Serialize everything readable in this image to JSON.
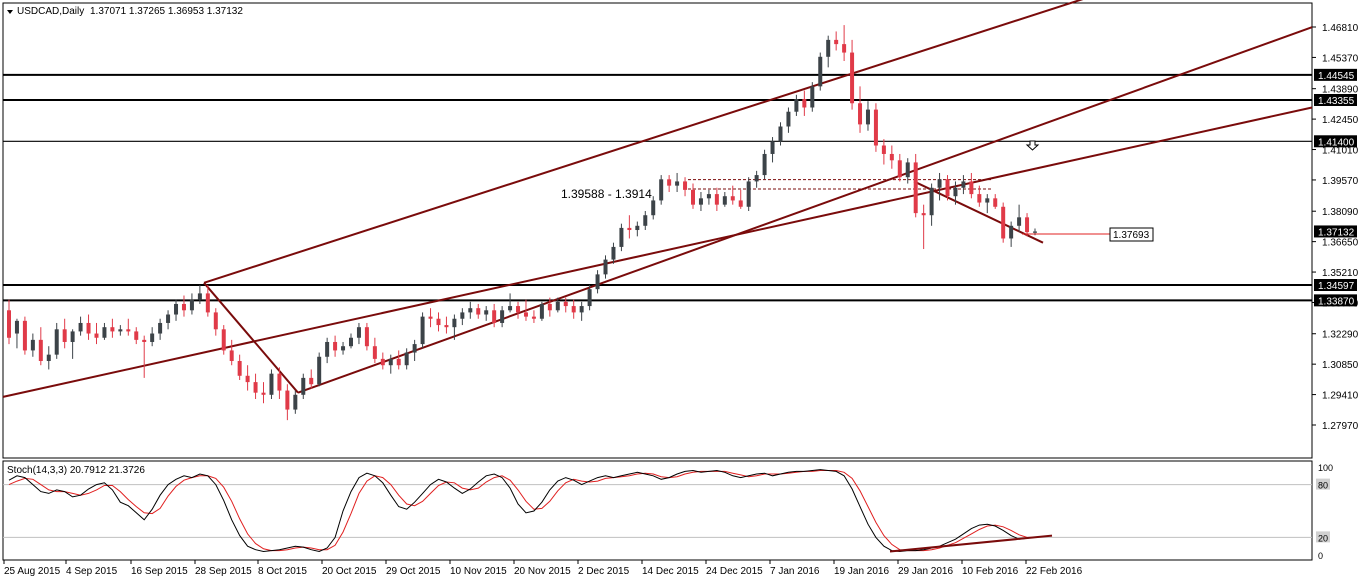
{
  "header": {
    "symbol": "USDCAD,Daily",
    "ohlc": "1.37071 1.37265 1.36953 1.37132"
  },
  "indicator": {
    "title": "Stoch(14,3,3) 20.7912 21.3726",
    "levels": [
      "100",
      "80",
      "20",
      "0"
    ]
  },
  "annotations": {
    "zone_label": "1.39588  - 1.3914",
    "price_tag": "1.37693",
    "arrow_icon": "down-arrow-icon"
  },
  "colors": {
    "bull": "#3c4348",
    "bear": "#e03a48",
    "channel": "#7a0b0b",
    "hline": "#000000",
    "stoch_main": "#000000",
    "stoch_signal": "#e02020"
  },
  "chart_data": {
    "type": "candlestick",
    "price_ticks": [
      "1.46810",
      "1.45370",
      "1.43890",
      "1.42450",
      "1.41010",
      "1.39570",
      "1.38090",
      "1.36650",
      "1.35210",
      "1.33770",
      "1.32290",
      "1.30850",
      "1.29410",
      "1.27970"
    ],
    "date_labels": [
      "25 Aug 2015",
      "4 Sep 2015",
      "16 Sep 2015",
      "28 Sep 2015",
      "8 Oct 2015",
      "20 Oct 2015",
      "29 Oct 2015",
      "10 Nov 2015",
      "20 Nov 2015",
      "2 Dec 2015",
      "14 Dec 2015",
      "24 Dec 2015",
      "7 Jan 2016",
      "19 Jan 2016",
      "29 Jan 2016",
      "10 Feb 2016",
      "22 Feb 2016"
    ],
    "horizontal_levels": [
      {
        "label": "1.44545",
        "value": 1.44545
      },
      {
        "label": "1.43355",
        "value": 1.43355
      },
      {
        "label": "1.41400",
        "value": 1.414
      },
      {
        "label": "1.34597",
        "value": 1.34597
      },
      {
        "label": "1.33870",
        "value": 1.3387
      }
    ],
    "current_price": {
      "label": "1.37132",
      "value": 1.37132
    },
    "candles": [
      [
        1.334,
        1.339,
        1.318,
        1.321
      ],
      [
        1.323,
        1.33,
        1.316,
        1.329
      ],
      [
        1.329,
        1.331,
        1.313,
        1.315
      ],
      [
        1.315,
        1.323,
        1.312,
        1.32
      ],
      [
        1.32,
        1.326,
        1.308,
        1.31
      ],
      [
        1.31,
        1.317,
        1.306,
        1.313
      ],
      [
        1.313,
        1.328,
        1.311,
        1.325
      ],
      [
        1.325,
        1.33,
        1.316,
        1.319
      ],
      [
        1.319,
        1.325,
        1.311,
        1.324
      ],
      [
        1.324,
        1.331,
        1.322,
        1.328
      ],
      [
        1.328,
        1.332,
        1.32,
        1.323
      ],
      [
        1.323,
        1.328,
        1.318,
        1.321
      ],
      [
        1.321,
        1.328,
        1.32,
        1.326
      ],
      [
        1.326,
        1.33,
        1.321,
        1.324
      ],
      [
        1.324,
        1.327,
        1.322,
        1.325
      ],
      [
        1.325,
        1.33,
        1.322,
        1.324
      ],
      [
        1.324,
        1.326,
        1.318,
        1.32
      ],
      [
        1.32,
        1.322,
        1.302,
        1.319
      ],
      [
        1.319,
        1.326,
        1.317,
        1.323
      ],
      [
        1.323,
        1.33,
        1.32,
        1.328
      ],
      [
        1.328,
        1.334,
        1.325,
        1.332
      ],
      [
        1.332,
        1.339,
        1.329,
        1.337
      ],
      [
        1.337,
        1.341,
        1.331,
        1.334
      ],
      [
        1.334,
        1.342,
        1.332,
        1.339
      ],
      [
        1.339,
        1.346,
        1.337,
        1.342
      ],
      [
        1.342,
        1.346,
        1.331,
        1.333
      ],
      [
        1.333,
        1.335,
        1.322,
        1.325
      ],
      [
        1.325,
        1.327,
        1.313,
        1.315
      ],
      [
        1.315,
        1.32,
        1.308,
        1.31
      ],
      [
        1.31,
        1.313,
        1.301,
        1.303
      ],
      [
        1.303,
        1.308,
        1.296,
        1.3
      ],
      [
        1.3,
        1.304,
        1.292,
        1.295
      ],
      [
        1.295,
        1.3,
        1.29,
        1.294
      ],
      [
        1.294,
        1.306,
        1.292,
        1.304
      ],
      [
        1.304,
        1.307,
        1.292,
        1.296
      ],
      [
        1.296,
        1.299,
        1.282,
        1.287
      ],
      [
        1.287,
        1.296,
        1.285,
        1.294
      ],
      [
        1.294,
        1.304,
        1.292,
        1.302
      ],
      [
        1.302,
        1.306,
        1.297,
        1.299
      ],
      [
        1.299,
        1.314,
        1.298,
        1.312
      ],
      [
        1.312,
        1.321,
        1.309,
        1.319
      ],
      [
        1.319,
        1.322,
        1.312,
        1.315
      ],
      [
        1.315,
        1.319,
        1.313,
        1.317
      ],
      [
        1.317,
        1.323,
        1.316,
        1.321
      ],
      [
        1.321,
        1.328,
        1.318,
        1.326
      ],
      [
        1.326,
        1.328,
        1.315,
        1.317
      ],
      [
        1.317,
        1.321,
        1.309,
        1.311
      ],
      [
        1.311,
        1.314,
        1.306,
        1.308
      ],
      [
        1.308,
        1.313,
        1.304,
        1.311
      ],
      [
        1.311,
        1.315,
        1.306,
        1.308
      ],
      [
        1.308,
        1.316,
        1.306,
        1.314
      ],
      [
        1.314,
        1.32,
        1.31,
        1.318
      ],
      [
        1.318,
        1.333,
        1.316,
        1.331
      ],
      [
        1.331,
        1.335,
        1.326,
        1.33
      ],
      [
        1.33,
        1.333,
        1.324,
        1.327
      ],
      [
        1.327,
        1.331,
        1.323,
        1.326
      ],
      [
        1.326,
        1.332,
        1.32,
        1.33
      ],
      [
        1.33,
        1.335,
        1.327,
        1.333
      ],
      [
        1.333,
        1.338,
        1.33,
        1.335
      ],
      [
        1.335,
        1.337,
        1.33,
        1.332
      ],
      [
        1.332,
        1.336,
        1.329,
        1.334
      ],
      [
        1.334,
        1.337,
        1.326,
        1.328
      ],
      [
        1.328,
        1.336,
        1.326,
        1.334
      ],
      [
        1.334,
        1.342,
        1.333,
        1.336
      ],
      [
        1.336,
        1.338,
        1.33,
        1.333
      ],
      [
        1.333,
        1.339,
        1.329,
        1.331
      ],
      [
        1.331,
        1.334,
        1.328,
        1.33
      ],
      [
        1.33,
        1.338,
        1.329,
        1.337
      ],
      [
        1.337,
        1.34,
        1.331,
        1.334
      ],
      [
        1.334,
        1.34,
        1.333,
        1.338
      ],
      [
        1.338,
        1.34,
        1.333,
        1.336
      ],
      [
        1.336,
        1.339,
        1.33,
        1.333
      ],
      [
        1.333,
        1.338,
        1.329,
        1.336
      ],
      [
        1.336,
        1.346,
        1.334,
        1.344
      ],
      [
        1.344,
        1.353,
        1.342,
        1.351
      ],
      [
        1.351,
        1.36,
        1.349,
        1.358
      ],
      [
        1.358,
        1.366,
        1.356,
        1.364
      ],
      [
        1.364,
        1.375,
        1.362,
        1.373
      ],
      [
        1.373,
        1.379,
        1.368,
        1.372
      ],
      [
        1.372,
        1.376,
        1.369,
        1.374
      ],
      [
        1.374,
        1.381,
        1.372,
        1.379
      ],
      [
        1.379,
        1.388,
        1.377,
        1.386
      ],
      [
        1.386,
        1.398,
        1.384,
        1.396
      ],
      [
        1.396,
        1.398,
        1.39,
        1.393
      ],
      [
        1.393,
        1.399,
        1.39,
        1.395
      ],
      [
        1.395,
        1.397,
        1.388,
        1.391
      ],
      [
        1.391,
        1.394,
        1.382,
        1.384
      ],
      [
        1.384,
        1.39,
        1.381,
        1.387
      ],
      [
        1.387,
        1.391,
        1.384,
        1.389
      ],
      [
        1.389,
        1.392,
        1.381,
        1.384
      ],
      [
        1.384,
        1.39,
        1.383,
        1.388
      ],
      [
        1.388,
        1.393,
        1.384,
        1.386
      ],
      [
        1.386,
        1.391,
        1.382,
        1.383
      ],
      [
        1.383,
        1.397,
        1.381,
        1.395
      ],
      [
        1.395,
        1.4,
        1.392,
        1.398
      ],
      [
        1.398,
        1.41,
        1.396,
        1.408
      ],
      [
        1.408,
        1.416,
        1.404,
        1.414
      ],
      [
        1.414,
        1.423,
        1.412,
        1.421
      ],
      [
        1.421,
        1.43,
        1.418,
        1.428
      ],
      [
        1.428,
        1.436,
        1.426,
        1.434
      ],
      [
        1.434,
        1.438,
        1.426,
        1.43
      ],
      [
        1.43,
        1.442,
        1.428,
        1.44
      ],
      [
        1.44,
        1.456,
        1.438,
        1.454
      ],
      [
        1.454,
        1.464,
        1.449,
        1.462
      ],
      [
        1.462,
        1.466,
        1.457,
        1.46
      ],
      [
        1.46,
        1.469,
        1.452,
        1.456
      ],
      [
        1.456,
        1.462,
        1.429,
        1.432
      ],
      [
        1.432,
        1.44,
        1.418,
        1.422
      ],
      [
        1.422,
        1.433,
        1.419,
        1.429
      ],
      [
        1.429,
        1.432,
        1.409,
        1.412
      ],
      [
        1.412,
        1.415,
        1.403,
        1.408
      ],
      [
        1.408,
        1.412,
        1.401,
        1.405
      ],
      [
        1.405,
        1.408,
        1.395,
        1.397
      ],
      [
        1.397,
        1.406,
        1.394,
        1.404
      ],
      [
        1.404,
        1.408,
        1.378,
        1.38
      ],
      [
        1.38,
        1.384,
        1.363,
        1.379
      ],
      [
        1.379,
        1.394,
        1.374,
        1.392
      ],
      [
        1.392,
        1.399,
        1.386,
        1.396
      ],
      [
        1.396,
        1.398,
        1.386,
        1.388
      ],
      [
        1.388,
        1.395,
        1.384,
        1.392
      ],
      [
        1.392,
        1.398,
        1.389,
        1.395
      ],
      [
        1.395,
        1.399,
        1.387,
        1.389
      ],
      [
        1.389,
        1.393,
        1.383,
        1.385
      ],
      [
        1.385,
        1.389,
        1.38,
        1.387
      ],
      [
        1.387,
        1.389,
        1.382,
        1.383
      ],
      [
        1.383,
        1.385,
        1.366,
        1.368
      ],
      [
        1.368,
        1.376,
        1.364,
        1.374
      ],
      [
        1.374,
        1.384,
        1.371,
        1.378
      ],
      [
        1.378,
        1.38,
        1.369,
        1.371
      ],
      [
        1.3707,
        1.3727,
        1.3695,
        1.3713
      ]
    ],
    "stochastic": {
      "levels": [
        100,
        80,
        20,
        0
      ],
      "main": [
        85,
        90,
        88,
        80,
        72,
        70,
        74,
        72,
        66,
        68,
        75,
        80,
        82,
        74,
        60,
        56,
        48,
        40,
        52,
        68,
        80,
        86,
        90,
        88,
        92,
        90,
        80,
        62,
        40,
        22,
        10,
        6,
        4,
        5,
        6,
        8,
        10,
        9,
        6,
        4,
        8,
        20,
        50,
        72,
        88,
        93,
        90,
        82,
        68,
        55,
        52,
        60,
        70,
        80,
        86,
        83,
        76,
        70,
        75,
        83,
        90,
        92,
        88,
        76,
        58,
        48,
        50,
        60,
        74,
        84,
        88,
        85,
        80,
        84,
        88,
        90,
        88,
        90,
        92,
        94,
        92,
        90,
        86,
        88,
        92,
        95,
        96,
        94,
        95,
        96,
        94,
        90,
        88,
        90,
        92,
        93,
        90,
        92,
        94,
        95,
        95,
        96,
        97,
        96,
        95,
        90,
        75,
        55,
        35,
        20,
        10,
        5,
        4,
        5,
        5,
        6,
        8,
        10,
        14,
        18,
        24,
        30,
        34,
        35,
        33,
        28,
        22,
        18,
        19,
        20
      ],
      "signal": [
        80,
        84,
        87,
        86,
        80,
        74,
        72,
        72,
        70,
        68,
        70,
        74,
        79,
        79,
        72,
        63,
        55,
        48,
        47,
        53,
        67,
        78,
        85,
        88,
        90,
        90,
        87,
        77,
        61,
        41,
        24,
        13,
        7,
        5,
        5,
        6,
        8,
        9,
        8,
        6,
        6,
        11,
        26,
        47,
        70,
        84,
        90,
        88,
        80,
        68,
        58,
        56,
        61,
        70,
        79,
        83,
        82,
        76,
        74,
        76,
        83,
        88,
        90,
        85,
        74,
        61,
        52,
        53,
        61,
        73,
        82,
        86,
        84,
        83,
        84,
        87,
        88,
        89,
        90,
        92,
        93,
        92,
        89,
        88,
        89,
        92,
        94,
        95,
        95,
        95,
        95,
        93,
        91,
        89,
        90,
        92,
        92,
        92,
        93,
        94,
        95,
        95,
        96,
        96,
        96,
        94,
        87,
        73,
        55,
        37,
        22,
        12,
        6,
        5,
        5,
        5,
        6,
        8,
        11,
        14,
        19,
        24,
        29,
        33,
        34,
        32,
        28,
        23,
        20,
        20
      ]
    }
  }
}
